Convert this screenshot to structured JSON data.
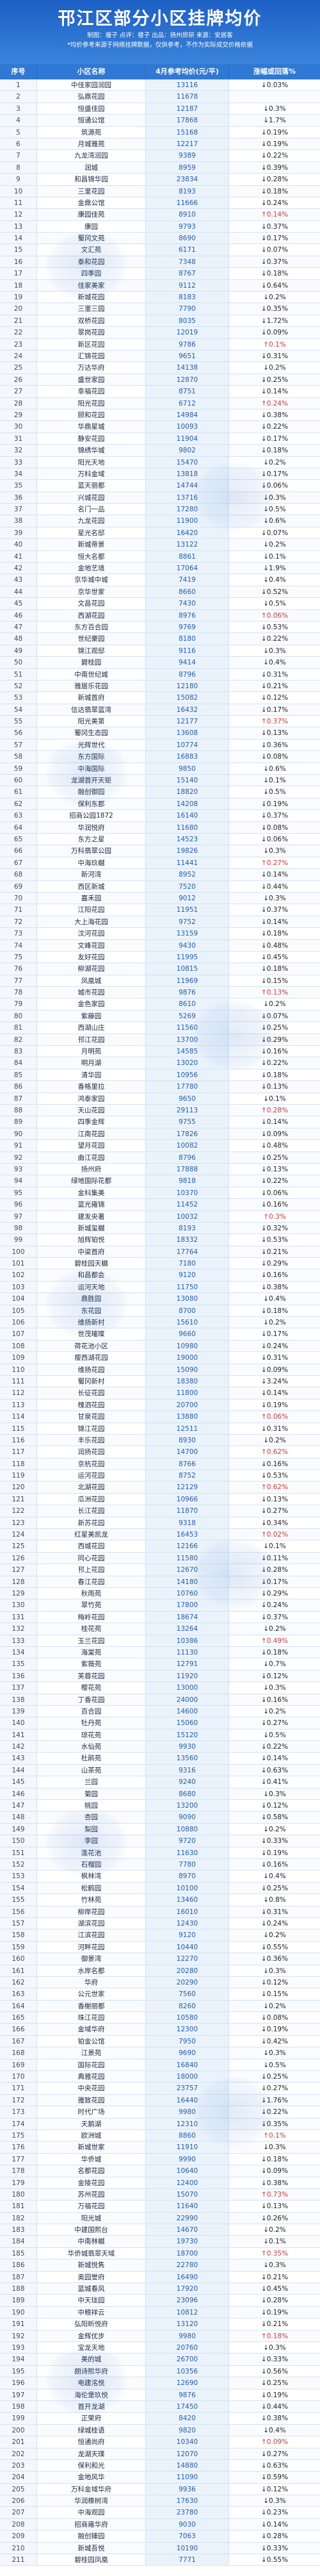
{
  "header": {
    "title": "邗江区部分小区挂牌均价",
    "sub_line1": "制图：瘦子  点评：楼子  出品：扬州房研  来源：安居客",
    "sub_line2": "*均价参考来源于网络挂牌数据，仅供参考，不作为实际成交价格依据"
  },
  "colors": {
    "accent": "#2f78d4",
    "up": "#e03a3a",
    "down": "#222222",
    "price": "#1f5fbf"
  },
  "table": {
    "columns": [
      "序号",
      "小区名称",
      "4月参考均价(元/平)",
      "涨幅或回落%"
    ],
    "rows": [
      [
        "1",
        "中佳家园润园",
        "13116",
        "↓0.03%"
      ],
      [
        "2",
        "弘鼎花园",
        "11678",
        ""
      ],
      [
        "3",
        "恒盛佳园",
        "12187",
        "↓0.3%"
      ],
      [
        "4",
        "恒通公馆",
        "17868",
        "↓1.7%"
      ],
      [
        "5",
        "筑源苑",
        "15168",
        "↓0.19%"
      ],
      [
        "6",
        "月城雅苑",
        "12217",
        "↓0.19%"
      ],
      [
        "7",
        "九龙湾润园",
        "9389",
        "↓0.22%"
      ],
      [
        "8",
        "润城",
        "8959",
        "↓0.39%"
      ],
      [
        "9",
        "和昌锦华园",
        "23834",
        "↓0.28%"
      ],
      [
        "10",
        "三里花园",
        "8193",
        "↓0.18%"
      ],
      [
        "11",
        "金鼎公馆",
        "11666",
        "↓0.24%"
      ],
      [
        "12",
        "康园佳苑",
        "8910",
        "↑0.14%"
      ],
      [
        "13",
        "康园",
        "9793",
        "↓0.37%"
      ],
      [
        "14",
        "蜀冈文苑",
        "8690",
        "↓0.17%"
      ],
      [
        "15",
        "文汇苑",
        "6171",
        "↓0.07%"
      ],
      [
        "16",
        "泰和花园",
        "7348",
        "↓0.37%"
      ],
      [
        "17",
        "四季园",
        "8767",
        "↓0.18%"
      ],
      [
        "18",
        "佳家美家",
        "9112",
        "↓0.64%"
      ],
      [
        "19",
        "新城花园",
        "8183",
        "↓0.2%"
      ],
      [
        "20",
        "三里三园",
        "7790",
        "↓0.35%"
      ],
      [
        "21",
        "双桥花园",
        "8035",
        "↓1.72%"
      ],
      [
        "22",
        "翠岗花园",
        "12019",
        "↓0.09%"
      ],
      [
        "23",
        "新区花园",
        "9786",
        "↑0.1%"
      ],
      [
        "24",
        "汇锦花园",
        "9651",
        "↓0.31%"
      ],
      [
        "25",
        "万达华府",
        "14138",
        "↓0.2%"
      ],
      [
        "26",
        "盛世家园",
        "12870",
        "↓0.25%"
      ],
      [
        "27",
        "幸福花园",
        "8751",
        "↓0.14%"
      ],
      [
        "28",
        "阳光花园",
        "6712",
        "↑0.24%"
      ],
      [
        "29",
        "颐和花园",
        "14984",
        "↓0.38%"
      ],
      [
        "30",
        "华鼎星城",
        "10093",
        "↓0.22%"
      ],
      [
        "31",
        "静安花园",
        "11904",
        "↓0.17%"
      ],
      [
        "32",
        "锦绣华城",
        "9802",
        "↓0.18%"
      ],
      [
        "33",
        "阳光天地",
        "15470",
        "↓0.2%"
      ],
      [
        "34",
        "万科金域",
        "13818",
        "↓0.17%"
      ],
      [
        "35",
        "蓝天丽都",
        "14744",
        "↓0.06%"
      ],
      [
        "36",
        "兴城花园",
        "13716",
        "↓0.3%"
      ],
      [
        "37",
        "名门一品",
        "17280",
        "↓0.5%"
      ],
      [
        "38",
        "九龙花园",
        "11900",
        "↓0.6%"
      ],
      [
        "39",
        "星光名邸",
        "16420",
        "↓0.07%"
      ],
      [
        "40",
        "新城帝景",
        "13122",
        "↓0.2%"
      ],
      [
        "41",
        "恒大名都",
        "8861",
        "↓0.1%"
      ],
      [
        "42",
        "金地艺境",
        "17064",
        "↓1.9%"
      ],
      [
        "43",
        "京华城中城",
        "7419",
        "↓0.4%"
      ],
      [
        "44",
        "京华世家",
        "8660",
        "↓0.52%"
      ],
      [
        "45",
        "文昌花园",
        "7430",
        "↓0.5%"
      ],
      [
        "46",
        "西湖花园",
        "8976",
        "↑0.06%"
      ],
      [
        "47",
        "东方百合园",
        "9769",
        "↓0.53%"
      ],
      [
        "48",
        "世纪豪园",
        "8180",
        "↓0.22%"
      ],
      [
        "49",
        "锦江观邸",
        "9116",
        "↓0.3%"
      ],
      [
        "50",
        "碧桂园",
        "9414",
        "↓0.4%"
      ],
      [
        "51",
        "中南世纪城",
        "8796",
        "↓0.31%"
      ],
      [
        "52",
        "雅居乐花园",
        "12180",
        "↓0.21%"
      ],
      [
        "53",
        "新城首府",
        "15082",
        "↓0.12%"
      ],
      [
        "54",
        "信达翡翠蓝湾",
        "16432",
        "↓0.17%"
      ],
      [
        "55",
        "阳光美第",
        "12177",
        "↑0.37%"
      ],
      [
        "56",
        "蜀冈生态园",
        "13608",
        "↓0.13%"
      ],
      [
        "57",
        "光辉世代",
        "10774",
        "↓0.36%"
      ],
      [
        "58",
        "东方国际",
        "16883",
        "↓0.08%"
      ],
      [
        "59",
        "中海国际",
        "9850",
        "↓0.6%"
      ],
      [
        "60",
        "龙湖首开天钜",
        "15140",
        "↓0.1%"
      ],
      [
        "61",
        "融创御园",
        "18820",
        "↓0.5%"
      ],
      [
        "62",
        "保利东郡",
        "14208",
        "↓0.19%"
      ],
      [
        "63",
        "招商公园1872",
        "16140",
        "↓0.37%"
      ],
      [
        "64",
        "华润悦府",
        "11680",
        "↓0.08%"
      ],
      [
        "65",
        "东方之星",
        "14523",
        "↓0.06%"
      ],
      [
        "66",
        "万科翡翠公园",
        "19826",
        "↓0.3%"
      ],
      [
        "67",
        "中海玖樾",
        "11441",
        "↑0.27%"
      ],
      [
        "68",
        "新河湾",
        "8952",
        "↓0.14%"
      ],
      [
        "69",
        "西区新城",
        "7520",
        "↓0.44%"
      ],
      [
        "70",
        "嘉禾园",
        "9012",
        "↓0.3%"
      ],
      [
        "71",
        "江阳花园",
        "11951",
        "↓0.37%"
      ],
      [
        "72",
        "大上海花园",
        "9752",
        "↓0.14%"
      ],
      [
        "73",
        "汶河花园",
        "13159",
        "↓0.18%"
      ],
      [
        "74",
        "文峰花园",
        "9430",
        "↓0.48%"
      ],
      [
        "75",
        "友好花园",
        "11995",
        "↓0.45%"
      ],
      [
        "76",
        "柳湖花园",
        "10815",
        "↓0.18%"
      ],
      [
        "77",
        "凤凰城",
        "11969",
        "↓0.15%"
      ],
      [
        "78",
        "城市花园",
        "9876",
        "↑0.13%"
      ],
      [
        "79",
        "金色家园",
        "8610",
        "↓0.2%"
      ],
      [
        "80",
        "紫藤园",
        "5269",
        "↓0.07%"
      ],
      [
        "81",
        "西湖山庄",
        "11560",
        "↓0.25%"
      ],
      [
        "82",
        "邗江花园",
        "13700",
        "↓0.29%"
      ],
      [
        "83",
        "月明苑",
        "14585",
        "↓0.16%"
      ],
      [
        "84",
        "明月湖",
        "13020",
        "↓0.22%"
      ],
      [
        "85",
        "清华园",
        "10956",
        "↓0.18%"
      ],
      [
        "86",
        "香格里拉",
        "17780",
        "↓0.13%"
      ],
      [
        "87",
        "鸿泰家园",
        "9650",
        "↓0.1%"
      ],
      [
        "88",
        "天山花园",
        "29113",
        "↑0.28%"
      ],
      [
        "89",
        "四季金辉",
        "9755",
        "↓0.14%"
      ],
      [
        "90",
        "江南花园",
        "17826",
        "↓0.09%"
      ],
      [
        "91",
        "望月花园",
        "10082",
        "↓0.48%"
      ],
      [
        "92",
        "曲江花园",
        "8796",
        "↓0.25%"
      ],
      [
        "93",
        "扬州府",
        "17888",
        "↓0.13%"
      ],
      [
        "94",
        "绿地国际花都",
        "9818",
        "↓0.22%"
      ],
      [
        "95",
        "金科集美",
        "10370",
        "↓0.06%"
      ],
      [
        "96",
        "蓝光雍锦",
        "11452",
        "↓0.16%"
      ],
      [
        "97",
        "建发央著",
        "10032",
        "↑0.3%"
      ],
      [
        "98",
        "新城玺樾",
        "8193",
        "↓0.32%"
      ],
      [
        "99",
        "旭辉铂悦",
        "18332",
        "↓0.53%"
      ],
      [
        "100",
        "中梁首府",
        "17764",
        "↓0.21%"
      ],
      [
        "101",
        "碧桂园天樾",
        "7180",
        "↓0.29%"
      ],
      [
        "102",
        "和昌都会",
        "9120",
        "↓0.16%"
      ],
      [
        "103",
        "运河天地",
        "11750",
        "↓0.38%"
      ],
      [
        "104",
        "鼎胜园",
        "13080",
        "↓0.4%"
      ],
      [
        "105",
        "东花园",
        "8700",
        "↓0.18%"
      ],
      [
        "106",
        "维扬新村",
        "15610",
        "↓0.2%"
      ],
      [
        "107",
        "世茂璀璨",
        "9660",
        "↓0.17%"
      ],
      [
        "108",
        "荷花池小区",
        "10980",
        "↓0.24%"
      ],
      [
        "109",
        "瘦西湖花园",
        "19000",
        "↓0.31%"
      ],
      [
        "110",
        "维扬花园",
        "15090",
        "↓0.09%"
      ],
      [
        "111",
        "蜀冈新村",
        "18380",
        "↓3.24%"
      ],
      [
        "112",
        "长征花园",
        "11800",
        "↓0.14%"
      ],
      [
        "113",
        "槐泗花园",
        "20700",
        "↓0.19%"
      ],
      [
        "114",
        "甘泉花园",
        "13880",
        "↑0.06%"
      ],
      [
        "115",
        "锦江花园",
        "12511",
        "↓0.31%"
      ],
      [
        "116",
        "丰乐花园",
        "8930",
        "↓0.2%"
      ],
      [
        "117",
        "润扬花园",
        "14700",
        "↑0.62%"
      ],
      [
        "118",
        "京杭花园",
        "8766",
        "↓0.16%"
      ],
      [
        "119",
        "运河花园",
        "8752",
        "↓0.53%"
      ],
      [
        "120",
        "北湖花园",
        "12129",
        "↑0.62%"
      ],
      [
        "121",
        "瓜洲花园",
        "10966",
        "↓0.13%"
      ],
      [
        "122",
        "长江花园",
        "11870",
        "↓0.27%"
      ],
      [
        "123",
        "新苏花园",
        "9318",
        "↓0.34%"
      ],
      [
        "124",
        "红星美凯龙",
        "16453",
        "↑0.02%"
      ],
      [
        "125",
        "西城花园",
        "12166",
        "↓0.1%"
      ],
      [
        "126",
        "同心花园",
        "11580",
        "↓0.11%"
      ],
      [
        "127",
        "邗上花园",
        "12670",
        "↓0.28%"
      ],
      [
        "128",
        "春江花园",
        "14180",
        "↓0.17%"
      ],
      [
        "129",
        "秋雨苑",
        "10760",
        "↓0.29%"
      ],
      [
        "130",
        "翠竹苑",
        "17800",
        "↓0.24%"
      ],
      [
        "131",
        "梅岭花园",
        "18674",
        "↓0.37%"
      ],
      [
        "132",
        "桂花苑",
        "13264",
        "↓0.2%"
      ],
      [
        "133",
        "玉兰花园",
        "10386",
        "↑0.49%"
      ],
      [
        "134",
        "海棠苑",
        "11130",
        "↓0.18%"
      ],
      [
        "135",
        "紫薇苑",
        "12791",
        "↓0.7%"
      ],
      [
        "136",
        "芙蓉花园",
        "11920",
        "↓0.12%"
      ],
      [
        "137",
        "樱花苑",
        "13000",
        "↓0.3%"
      ],
      [
        "138",
        "丁香花园",
        "24000",
        "↓0.16%"
      ],
      [
        "139",
        "百合园",
        "14600",
        "↓0.2%"
      ],
      [
        "140",
        "牡丹苑",
        "15060",
        "↓0.27%"
      ],
      [
        "141",
        "琼花苑",
        "15120",
        "↓0.5%"
      ],
      [
        "142",
        "水仙苑",
        "9930",
        "↓0.22%"
      ],
      [
        "143",
        "杜鹃苑",
        "13560",
        "↓0.14%"
      ],
      [
        "144",
        "山茶苑",
        "9316",
        "↓0.63%"
      ],
      [
        "145",
        "兰园",
        "9240",
        "↓0.41%"
      ],
      [
        "146",
        "菊园",
        "8680",
        "↓0.3%"
      ],
      [
        "147",
        "桃园",
        "13200",
        "↓0.12%"
      ],
      [
        "148",
        "杏园",
        "9090",
        "↓0.58%"
      ],
      [
        "149",
        "梨园",
        "10880",
        "↓0.2%"
      ],
      [
        "150",
        "李园",
        "9720",
        "↓0.33%"
      ],
      [
        "151",
        "莲花池",
        "11630",
        "↓0.19%"
      ],
      [
        "152",
        "石榴园",
        "7780",
        "↓0.16%"
      ],
      [
        "153",
        "枫林湾",
        "8970",
        "↓0.4%"
      ],
      [
        "154",
        "松鹤园",
        "10100",
        "↓0.25%"
      ],
      [
        "155",
        "竹林苑",
        "13460",
        "↓0.8%"
      ],
      [
        "156",
        "柳岸花园",
        "16010",
        "↓0.31%"
      ],
      [
        "157",
        "湖滨花园",
        "12430",
        "↓0.24%"
      ],
      [
        "158",
        "江滨花园",
        "9120",
        "↓0.2%"
      ],
      [
        "159",
        "河畔花园",
        "10440",
        "↓0.55%"
      ],
      [
        "160",
        "御景湾",
        "12270",
        "↓0.36%"
      ],
      [
        "161",
        "水岸名都",
        "20280",
        "↓0.3%"
      ],
      [
        "162",
        "华府",
        "20290",
        "↓0.12%"
      ],
      [
        "163",
        "公元世家",
        "7560",
        "↓0.15%"
      ],
      [
        "164",
        "香榭丽都",
        "8260",
        "↓0.2%"
      ],
      [
        "165",
        "珠江花园",
        "10580",
        "↓0.08%"
      ],
      [
        "166",
        "金域华府",
        "12300",
        "↓0.19%"
      ],
      [
        "167",
        "铂金公馆",
        "7950",
        "↓0.42%"
      ],
      [
        "168",
        "江景苑",
        "9690",
        "↓0.3%"
      ],
      [
        "169",
        "国际花园",
        "16840",
        "↓0.5%"
      ],
      [
        "170",
        "典雅花园",
        "18000",
        "↓0.25%"
      ],
      [
        "171",
        "中央花园",
        "23757",
        "↓0.27%"
      ],
      [
        "172",
        "雅致花园",
        "16440",
        "↓1.76%"
      ],
      [
        "173",
        "时代广场",
        "9980",
        "↓0.22%"
      ],
      [
        "174",
        "天鹅湖",
        "12310",
        "↓0.35%"
      ],
      [
        "175",
        "欧洲城",
        "8860",
        "↑0.1%"
      ],
      [
        "176",
        "新城世家",
        "11910",
        "↓0.3%"
      ],
      [
        "177",
        "华侨城",
        "9990",
        "↓0.18%"
      ],
      [
        "178",
        "名都花园",
        "10640",
        "↓0.09%"
      ],
      [
        "179",
        "金陵花园",
        "12400",
        "↓0.38%"
      ],
      [
        "180",
        "苏州花园",
        "15070",
        "↑0.73%"
      ],
      [
        "181",
        "万福花园",
        "11640",
        "↓0.13%"
      ],
      [
        "182",
        "阳光城",
        "22990",
        "↓0.26%"
      ],
      [
        "183",
        "中建国熙台",
        "14670",
        "↓0.2%"
      ],
      [
        "184",
        "中南林樾",
        "19730",
        "↓0.1%"
      ],
      [
        "185",
        "华侨城翡翠天域",
        "18700",
        "↑0.35%"
      ],
      [
        "186",
        "新城悦隽",
        "22780",
        "↓0.3%"
      ],
      [
        "187",
        "奥园誉府",
        "16490",
        "↓0.21%"
      ],
      [
        "188",
        "蓝城春风",
        "17920",
        "↓0.45%"
      ],
      [
        "189",
        "中天珑园",
        "23096",
        "↓0.28%"
      ],
      [
        "190",
        "中粮祥云",
        "10812",
        "↓0.19%"
      ],
      [
        "191",
        "弘阳昕悦府",
        "13120",
        "↓0.21%"
      ],
      [
        "192",
        "金辉优步",
        "9980",
        "↑0.18%"
      ],
      [
        "193",
        "宝龙天地",
        "20760",
        "↓0.3%"
      ],
      [
        "194",
        "美的城",
        "26700",
        "↓0.33%"
      ],
      [
        "195",
        "朗诗熙华府",
        "10356",
        "↓0.56%"
      ],
      [
        "196",
        "电建洺悦",
        "12690",
        "↓0.25%"
      ],
      [
        "197",
        "海伦堡玖悦",
        "9876",
        "↓0.19%"
      ],
      [
        "198",
        "首开龙湖",
        "17450",
        "↓0.44%"
      ],
      [
        "199",
        "正荣府",
        "8420",
        "↓0.38%"
      ],
      [
        "200",
        "绿城桂语",
        "9820",
        "↓0.4%"
      ],
      [
        "201",
        "恒通尚府",
        "10340",
        "↑0.09%"
      ],
      [
        "202",
        "龙湖天璞",
        "12070",
        "↓0.27%"
      ],
      [
        "203",
        "保利和光",
        "14880",
        "↓0.63%"
      ],
      [
        "204",
        "金地风华",
        "11090",
        "↓0.59%"
      ],
      [
        "205",
        "万科金域华府",
        "9936",
        "↓0.12%"
      ],
      [
        "206",
        "华润橡树湾",
        "17630",
        "↓0.3%"
      ],
      [
        "207",
        "中海观园",
        "23780",
        "↓0.23%"
      ],
      [
        "208",
        "招商雍华府",
        "9030",
        "↓0.14%"
      ],
      [
        "209",
        "融创臻园",
        "7063",
        "↓0.28%"
      ],
      [
        "210",
        "新城吾悦",
        "10190",
        "↓0.33%"
      ],
      [
        "211",
        "碧桂园凤凰",
        "7771",
        "↓0.55%"
      ]
    ]
  }
}
